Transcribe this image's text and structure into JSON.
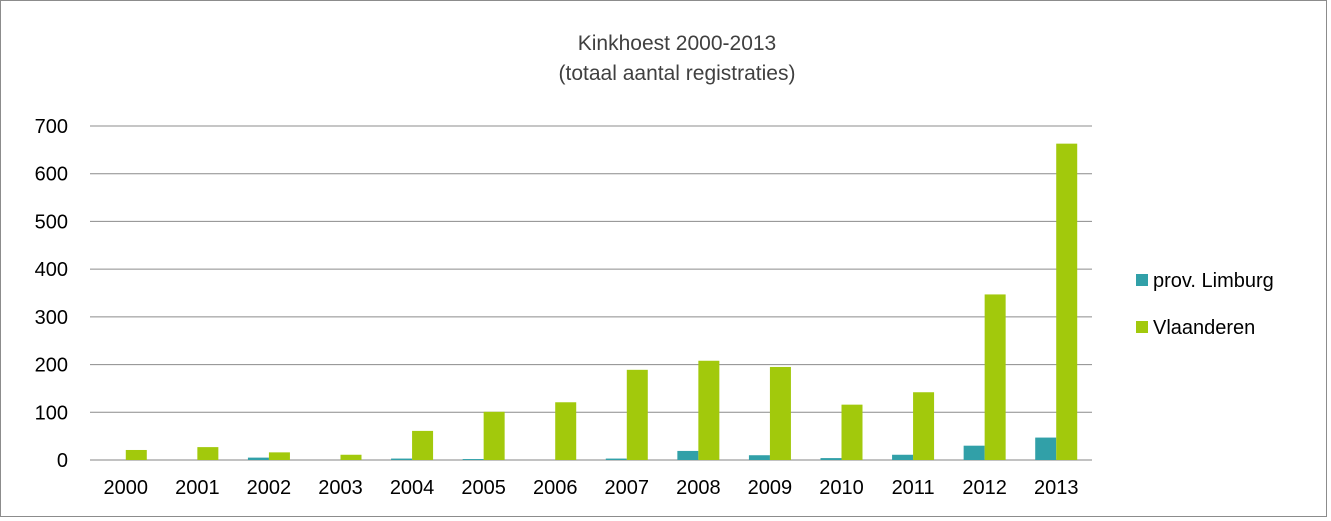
{
  "chart_data": {
    "type": "bar",
    "title": "Kinkhoest 2000-2013",
    "subtitle": "(totaal aantal registraties)",
    "xlabel": "",
    "ylabel": "",
    "ylim": [
      0,
      700
    ],
    "yticks": [
      0,
      100,
      200,
      300,
      400,
      500,
      600,
      700
    ],
    "grid": true,
    "legend_position": "right",
    "categories": [
      "2000",
      "2001",
      "2002",
      "2003",
      "2004",
      "2005",
      "2006",
      "2007",
      "2008",
      "2009",
      "2010",
      "2011",
      "2012",
      "2013"
    ],
    "series": [
      {
        "name": "prov. Limburg",
        "color": "#31a0a8",
        "values": [
          0,
          0,
          5,
          0,
          3,
          2,
          0,
          3,
          19,
          10,
          4,
          11,
          30,
          47
        ]
      },
      {
        "name": "Vlaanderen",
        "color": "#a2c90c",
        "values": [
          21,
          27,
          16,
          11,
          61,
          101,
          121,
          189,
          208,
          195,
          116,
          142,
          347,
          663
        ]
      }
    ]
  }
}
